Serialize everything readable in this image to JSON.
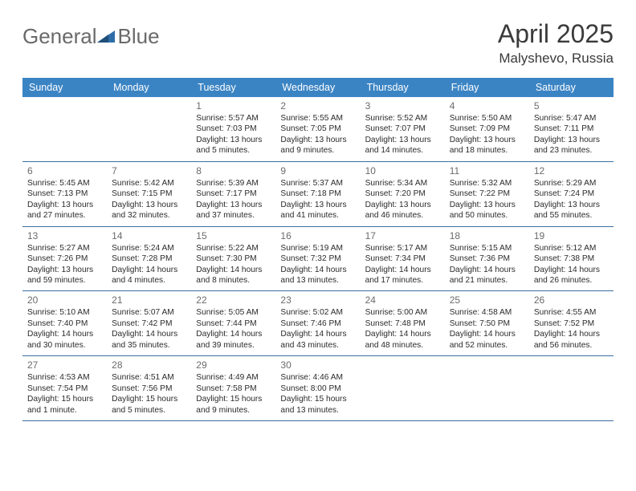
{
  "logo": {
    "word1": "General",
    "word2": "Blue"
  },
  "header": {
    "title": "April 2025",
    "location": "Malyshevo, Russia"
  },
  "colors": {
    "header_bg": "#3b84c4",
    "header_text": "#ffffff",
    "cell_border": "#3b6fa0",
    "daynum": "#6b6b6b",
    "body_text": "#2b2b2b",
    "title_text": "#3a3a3a",
    "logo_gray": "#6a6a6a",
    "logo_blue": "#2f6da8"
  },
  "day_headers": [
    "Sunday",
    "Monday",
    "Tuesday",
    "Wednesday",
    "Thursday",
    "Friday",
    "Saturday"
  ],
  "weeks": [
    [
      null,
      null,
      {
        "n": "1",
        "sr": "5:57 AM",
        "ss": "7:03 PM",
        "dl": "13 hours and 5 minutes."
      },
      {
        "n": "2",
        "sr": "5:55 AM",
        "ss": "7:05 PM",
        "dl": "13 hours and 9 minutes."
      },
      {
        "n": "3",
        "sr": "5:52 AM",
        "ss": "7:07 PM",
        "dl": "13 hours and 14 minutes."
      },
      {
        "n": "4",
        "sr": "5:50 AM",
        "ss": "7:09 PM",
        "dl": "13 hours and 18 minutes."
      },
      {
        "n": "5",
        "sr": "5:47 AM",
        "ss": "7:11 PM",
        "dl": "13 hours and 23 minutes."
      }
    ],
    [
      {
        "n": "6",
        "sr": "5:45 AM",
        "ss": "7:13 PM",
        "dl": "13 hours and 27 minutes."
      },
      {
        "n": "7",
        "sr": "5:42 AM",
        "ss": "7:15 PM",
        "dl": "13 hours and 32 minutes."
      },
      {
        "n": "8",
        "sr": "5:39 AM",
        "ss": "7:17 PM",
        "dl": "13 hours and 37 minutes."
      },
      {
        "n": "9",
        "sr": "5:37 AM",
        "ss": "7:18 PM",
        "dl": "13 hours and 41 minutes."
      },
      {
        "n": "10",
        "sr": "5:34 AM",
        "ss": "7:20 PM",
        "dl": "13 hours and 46 minutes."
      },
      {
        "n": "11",
        "sr": "5:32 AM",
        "ss": "7:22 PM",
        "dl": "13 hours and 50 minutes."
      },
      {
        "n": "12",
        "sr": "5:29 AM",
        "ss": "7:24 PM",
        "dl": "13 hours and 55 minutes."
      }
    ],
    [
      {
        "n": "13",
        "sr": "5:27 AM",
        "ss": "7:26 PM",
        "dl": "13 hours and 59 minutes."
      },
      {
        "n": "14",
        "sr": "5:24 AM",
        "ss": "7:28 PM",
        "dl": "14 hours and 4 minutes."
      },
      {
        "n": "15",
        "sr": "5:22 AM",
        "ss": "7:30 PM",
        "dl": "14 hours and 8 minutes."
      },
      {
        "n": "16",
        "sr": "5:19 AM",
        "ss": "7:32 PM",
        "dl": "14 hours and 13 minutes."
      },
      {
        "n": "17",
        "sr": "5:17 AM",
        "ss": "7:34 PM",
        "dl": "14 hours and 17 minutes."
      },
      {
        "n": "18",
        "sr": "5:15 AM",
        "ss": "7:36 PM",
        "dl": "14 hours and 21 minutes."
      },
      {
        "n": "19",
        "sr": "5:12 AM",
        "ss": "7:38 PM",
        "dl": "14 hours and 26 minutes."
      }
    ],
    [
      {
        "n": "20",
        "sr": "5:10 AM",
        "ss": "7:40 PM",
        "dl": "14 hours and 30 minutes."
      },
      {
        "n": "21",
        "sr": "5:07 AM",
        "ss": "7:42 PM",
        "dl": "14 hours and 35 minutes."
      },
      {
        "n": "22",
        "sr": "5:05 AM",
        "ss": "7:44 PM",
        "dl": "14 hours and 39 minutes."
      },
      {
        "n": "23",
        "sr": "5:02 AM",
        "ss": "7:46 PM",
        "dl": "14 hours and 43 minutes."
      },
      {
        "n": "24",
        "sr": "5:00 AM",
        "ss": "7:48 PM",
        "dl": "14 hours and 48 minutes."
      },
      {
        "n": "25",
        "sr": "4:58 AM",
        "ss": "7:50 PM",
        "dl": "14 hours and 52 minutes."
      },
      {
        "n": "26",
        "sr": "4:55 AM",
        "ss": "7:52 PM",
        "dl": "14 hours and 56 minutes."
      }
    ],
    [
      {
        "n": "27",
        "sr": "4:53 AM",
        "ss": "7:54 PM",
        "dl": "15 hours and 1 minute."
      },
      {
        "n": "28",
        "sr": "4:51 AM",
        "ss": "7:56 PM",
        "dl": "15 hours and 5 minutes."
      },
      {
        "n": "29",
        "sr": "4:49 AM",
        "ss": "7:58 PM",
        "dl": "15 hours and 9 minutes."
      },
      {
        "n": "30",
        "sr": "4:46 AM",
        "ss": "8:00 PM",
        "dl": "15 hours and 13 minutes."
      },
      null,
      null,
      null
    ]
  ],
  "labels": {
    "sunrise": "Sunrise: ",
    "sunset": "Sunset: ",
    "daylight": "Daylight: "
  }
}
